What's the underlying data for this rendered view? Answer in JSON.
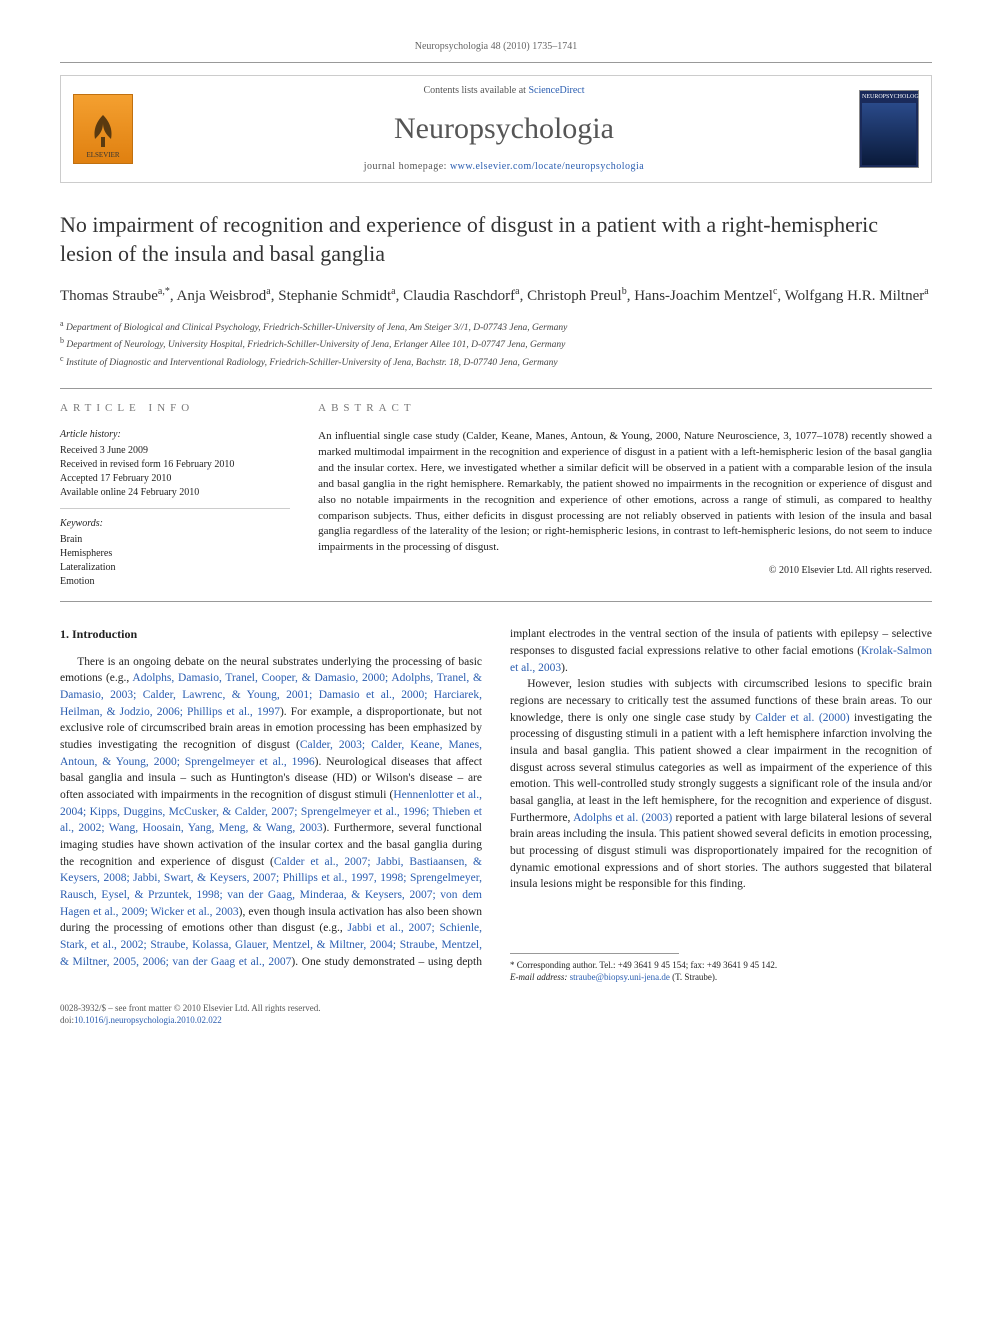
{
  "running_head": "Neuropsychologia 48 (2010) 1735–1741",
  "masthead": {
    "elsevier_label": "ELSEVIER",
    "contents_prefix": "Contents lists available at ",
    "contents_link": "ScienceDirect",
    "journal": "Neuropsychologia",
    "homepage_prefix": "journal homepage: ",
    "homepage_url": "www.elsevier.com/locate/neuropsychologia",
    "cover_label": "NEUROPSYCHOLOGIA"
  },
  "title": "No impairment of recognition and experience of disgust in a patient with a right-hemispheric lesion of the insula and basal ganglia",
  "authors_html": "Thomas Straube<sup>a,*</sup>, Anja Weisbrod<sup>a</sup>, Stephanie Schmidt<sup>a</sup>, Claudia Raschdorf<sup>a</sup>, Christoph Preul<sup>b</sup>, Hans-Joachim Mentzel<sup>c</sup>, Wolfgang H.R. Miltner<sup>a</sup>",
  "affiliations": [
    "a Department of Biological and Clinical Psychology, Friedrich-Schiller-University of Jena, Am Steiger 3//1, D-07743 Jena, Germany",
    "b Department of Neurology, University Hospital, Friedrich-Schiller-University of Jena, Erlanger Allee 101, D-07747 Jena, Germany",
    "c Institute of Diagnostic and Interventional Radiology, Friedrich-Schiller-University of Jena, Bachstr. 18, D-07740 Jena, Germany"
  ],
  "article_info": {
    "heading": "ARTICLE INFO",
    "history_label": "Article history:",
    "history": [
      "Received 3 June 2009",
      "Received in revised form 16 February 2010",
      "Accepted 17 February 2010",
      "Available online 24 February 2010"
    ],
    "keywords_label": "Keywords:",
    "keywords": [
      "Brain",
      "Hemispheres",
      "Lateralization",
      "Emotion"
    ]
  },
  "abstract": {
    "heading": "ABSTRACT",
    "text": "An influential single case study (Calder, Keane, Manes, Antoun, & Young, 2000, Nature Neuroscience, 3, 1077–1078) recently showed a marked multimodal impairment in the recognition and experience of disgust in a patient with a left-hemispheric lesion of the basal ganglia and the insular cortex. Here, we investigated whether a similar deficit will be observed in a patient with a comparable lesion of the insula and basal ganglia in the right hemisphere. Remarkably, the patient showed no impairments in the recognition or experience of disgust and also no notable impairments in the recognition and experience of other emotions, across a range of stimuli, as compared to healthy comparison subjects. Thus, either deficits in disgust processing are not reliably observed in patients with lesion of the insula and basal ganglia regardless of the laterality of the lesion; or right-hemispheric lesions, in contrast to left-hemispheric lesions, do not seem to induce impairments in the processing of disgust.",
    "copyright": "© 2010 Elsevier Ltd. All rights reserved."
  },
  "section1": {
    "heading": "1. Introduction",
    "p1_pre": "There is an ongoing debate on the neural substrates underlying the processing of basic emotions (e.g., ",
    "p1_link1": "Adolphs, Damasio, Tranel, Cooper, & Damasio, 2000; Adolphs, Tranel, & Damasio, 2003; Calder, Lawrenc, & Young, 2001; Damasio et al., 2000; Harciarek, Heilman, & Jodzio, 2006; Phillips et al., 1997",
    "p1_mid1": "). For example, a disproportionate, but not exclusive role of circumscribed brain areas in emotion processing has been emphasized by studies investigating the recognition of disgust (",
    "p1_link2": "Calder, 2003; Calder, Keane, Manes, Antoun, & Young, 2000; Sprengelmeyer et al., 1996",
    "p1_mid2": "). Neurological diseases that affect basal ganglia and insula – such as Huntington's disease (HD) or Wilson's disease – are often associated with impairments in the recognition of disgust stimuli (",
    "p1_link3": "Hennenlotter et al., 2004; Kipps, Duggins, McCusker, & Calder, 2007; Sprengelmeyer et al., 1996; Thieben et al., 2002; Wang, Hoosain, Yang, Meng, & Wang, 2003",
    "p1_mid3": "). Furthermore, several functional imaging studies have shown activation of the insular cortex and the basal ganglia during the recognition and experience of disgust (",
    "p1_link4": "Calder et al., 2007; Jabbi, Bastiaansen, & Keysers, 2008; Jabbi, Swart, & Keysers, 2007; Phillips et al., 1997, 1998; Sprengelmeyer, Rausch, Eysel, & Przuntek, 1998; van der Gaag, Minderaa, & Keysers, 2007; von dem Hagen et al., 2009; Wicker ",
    "p1_link4b": "et al., 2003",
    "p1_mid4": "), even though insula activation has also been shown during the processing of emotions other than disgust (e.g., ",
    "p1_link5": "Jabbi et al., 2007; Schienle, Stark, et al., 2002; Straube, Kolassa, Glauer, Mentzel, & Miltner, 2004; Straube, Mentzel, & Miltner, 2005, 2006; van der Gaag et al., 2007",
    "p1_mid5": "). One study demonstrated – using depth implant electrodes in the ventral section of the insula of patients with epilepsy – selective responses to disgusted facial expressions relative to other facial emotions (",
    "p1_link6": "Krolak-Salmon et al., 2003",
    "p1_post": ").",
    "p2_pre": "However, lesion studies with subjects with circumscribed lesions to specific brain regions are necessary to critically test the assumed functions of these brain areas. To our knowledge, there is only one single case study by ",
    "p2_link1": "Calder et al. (2000)",
    "p2_mid1": " investigating the processing of disgusting stimuli in a patient with a left hemisphere infarction involving the insula and basal ganglia. This patient showed a clear impairment in the recognition of disgust across several stimulus categories as well as impairment of the experience of this emotion. This well-controlled study strongly suggests a significant role of the insula and/or basal ganglia, at least in the left hemisphere, for the recognition and experience of disgust. Furthermore, ",
    "p2_link2": "Adolphs et al. (2003)",
    "p2_post": " reported a patient with large bilateral lesions of several brain areas including the insula. This patient showed several deficits in emotion processing, but processing of disgust stimuli was disproportionately impaired for the recognition of dynamic emotional expressions and of short stories. The authors suggested that bilateral insula lesions might be responsible for this finding."
  },
  "footnotes": {
    "corr": "* Corresponding author. Tel.: +49 3641 9 45 154; fax: +49 3641 9 45 142.",
    "email_label": "E-mail address: ",
    "email": "straube@biopsy.uni-jena.de",
    "email_suffix": " (T. Straube)."
  },
  "bottom": {
    "line1": "0028-3932/$ – see front matter © 2010 Elsevier Ltd. All rights reserved.",
    "doi_label": "doi:",
    "doi": "10.1016/j.neuropsychologia.2010.02.022"
  },
  "colors": {
    "link": "#2a5db0",
    "rule": "#999999",
    "text": "#222222",
    "muted": "#666666"
  }
}
